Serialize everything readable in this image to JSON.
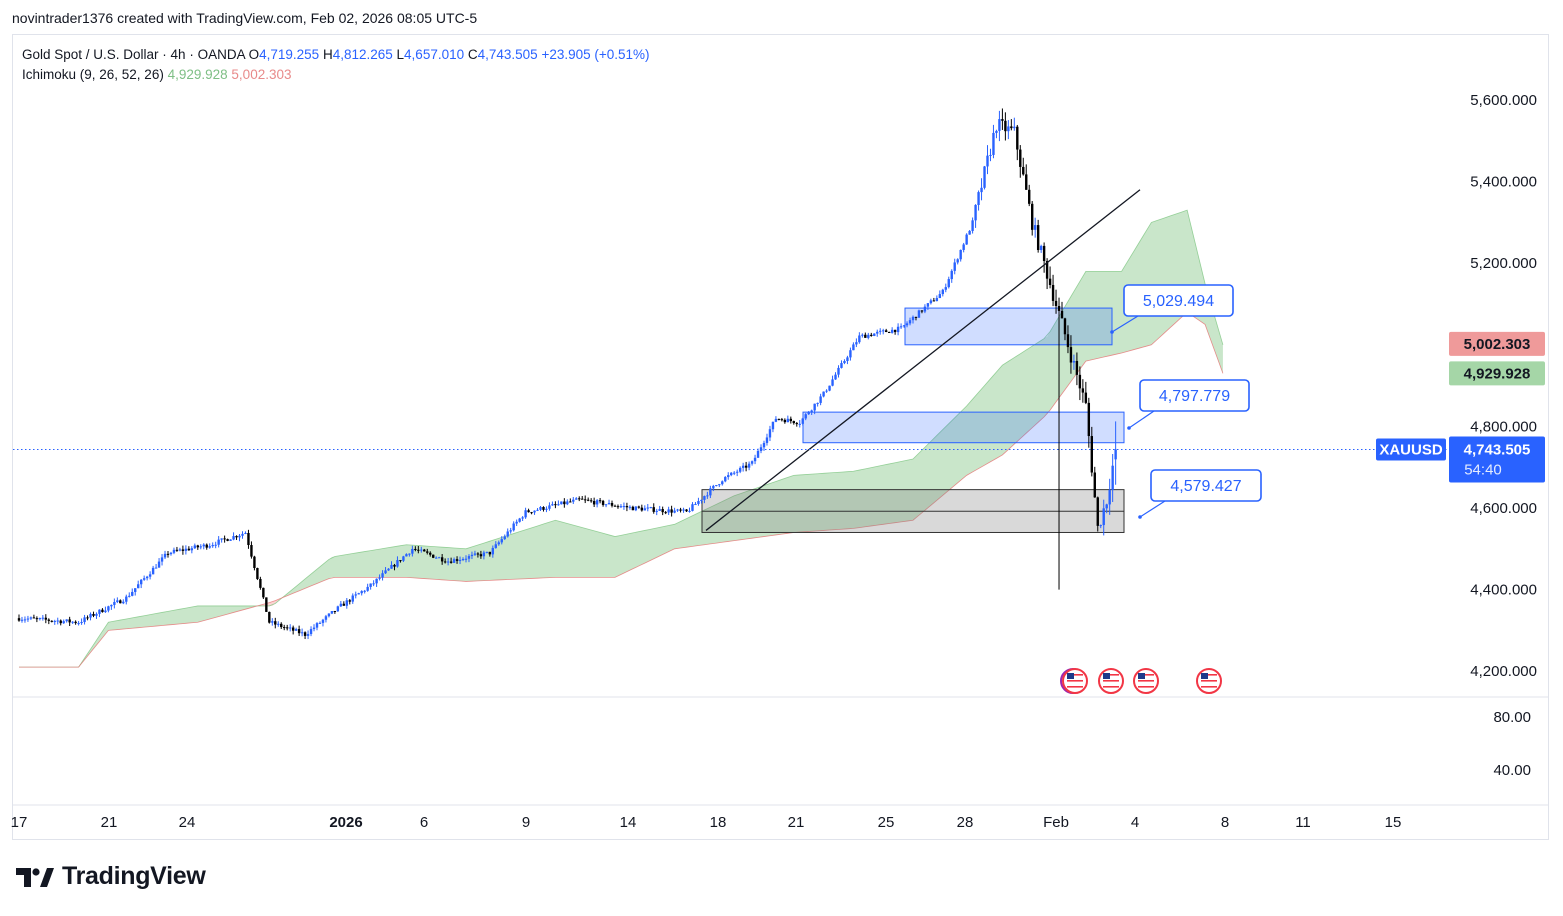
{
  "header": {
    "credit": "novintrader1376 created with TradingView.com, Feb 02, 2026 08:05 UTC-5"
  },
  "legend": {
    "symbol": "Gold Spot / U.S. Dollar · 4h · OANDA",
    "o_label": "O",
    "o_value": "4,719.255",
    "h_label": "H",
    "h_value": "4,812.265",
    "l_label": "L",
    "l_value": "4,657.010",
    "c_label": "C",
    "c_value": "4,743.505",
    "change": "+23.905 (+0.51%)",
    "ichimoku_label": "Ichimoku (9, 26, 52, 26)",
    "ichimoku_a": "4,929.928",
    "ichimoku_b": "5,002.303"
  },
  "colors": {
    "bull": "#2962ff",
    "bear": "#000000",
    "cloud_green": "#a5d6a7",
    "cloud_red": "#f7b0b0",
    "zone_blue": "#2962ff",
    "zone_gray": "#808080",
    "badge_red": "#ef9a9a",
    "badge_green": "#a5d6a7",
    "badge_price": "#2962ff"
  },
  "chart_data": {
    "type": "candlestick",
    "title": "Gold Spot / U.S. Dollar · 4h · OANDA",
    "ylim": [
      4130,
      5720
    ],
    "y_ticks": [
      5600,
      5400,
      5200,
      4800,
      4600,
      4400,
      4200
    ],
    "y_tick_labels": [
      "5,600.000",
      "5,400.000",
      "5,200.000",
      "4,800.000",
      "4,600.000",
      "4,400.000",
      "4,200.000"
    ],
    "x_tick_labels": [
      "17",
      "21",
      "24",
      "2026",
      "6",
      "9",
      "14",
      "18",
      "21",
      "25",
      "28",
      "Feb",
      "4",
      "8",
      "11",
      "15"
    ],
    "price_anchors": [
      [
        0,
        4330
      ],
      [
        20,
        4320
      ],
      [
        36,
        4380
      ],
      [
        50,
        4490
      ],
      [
        64,
        4510
      ],
      [
        76,
        4540
      ],
      [
        84,
        4320
      ],
      [
        96,
        4290
      ],
      [
        108,
        4360
      ],
      [
        118,
        4410
      ],
      [
        132,
        4500
      ],
      [
        144,
        4470
      ],
      [
        158,
        4490
      ],
      [
        170,
        4590
      ],
      [
        188,
        4620
      ],
      [
        206,
        4600
      ],
      [
        224,
        4590
      ],
      [
        236,
        4670
      ],
      [
        246,
        4710
      ],
      [
        254,
        4820
      ],
      [
        262,
        4810
      ],
      [
        270,
        4880
      ],
      [
        282,
        5020
      ],
      [
        296,
        5040
      ],
      [
        310,
        5130
      ],
      [
        320,
        5300
      ],
      [
        328,
        5540
      ],
      [
        334,
        5520
      ],
      [
        340,
        5300
      ],
      [
        346,
        5150
      ],
      [
        352,
        5000
      ],
      [
        358,
        4850
      ],
      [
        362,
        4550
      ],
      [
        365,
        4620
      ],
      [
        368,
        4743
      ]
    ],
    "ichimoku_a": [
      [
        0,
        4210
      ],
      [
        20,
        4210
      ],
      [
        30,
        4320
      ],
      [
        60,
        4360
      ],
      [
        85,
        4360
      ],
      [
        105,
        4480
      ],
      [
        130,
        4510
      ],
      [
        150,
        4500
      ],
      [
        180,
        4570
      ],
      [
        200,
        4530
      ],
      [
        220,
        4560
      ],
      [
        240,
        4630
      ],
      [
        260,
        4680
      ],
      [
        280,
        4690
      ],
      [
        300,
        4720
      ],
      [
        318,
        4850
      ],
      [
        330,
        4950
      ],
      [
        345,
        5020
      ],
      [
        358,
        5180
      ],
      [
        370,
        5180
      ],
      [
        380,
        5300
      ],
      [
        392,
        5330
      ],
      [
        398,
        5150
      ],
      [
        404,
        5000
      ]
    ],
    "ichimoku_b": [
      [
        0,
        4210
      ],
      [
        20,
        4210
      ],
      [
        30,
        4300
      ],
      [
        60,
        4320
      ],
      [
        85,
        4370
      ],
      [
        105,
        4430
      ],
      [
        130,
        4430
      ],
      [
        150,
        4420
      ],
      [
        180,
        4430
      ],
      [
        200,
        4430
      ],
      [
        220,
        4500
      ],
      [
        240,
        4520
      ],
      [
        260,
        4540
      ],
      [
        280,
        4550
      ],
      [
        300,
        4570
      ],
      [
        318,
        4680
      ],
      [
        330,
        4730
      ],
      [
        345,
        4830
      ],
      [
        358,
        4960
      ],
      [
        370,
        4980
      ],
      [
        380,
        5000
      ],
      [
        392,
        5080
      ],
      [
        398,
        5050
      ],
      [
        404,
        4930
      ]
    ],
    "ichimoku_last_a": 4929.928,
    "ichimoku_last_b": 5002.303,
    "zones": [
      {
        "kind": "blue",
        "label": "5,029.494",
        "low": 5000,
        "high": 5090
      },
      {
        "kind": "blue",
        "label": "4,797.779",
        "low": 4760,
        "high": 4835
      },
      {
        "kind": "gray",
        "label": "4,579.427",
        "low": 4540,
        "high": 4645,
        "mid": 4592
      }
    ],
    "trendline": {
      "from": [
        4545
      ],
      "to": [
        5380
      ]
    },
    "last_price": 4743.505,
    "badges": {
      "b_red": "5,002.303",
      "b_green": "4,929.928",
      "symbol": "XAUUSD",
      "price": "4,743.505",
      "countdown": "54:40"
    },
    "oscillator_ticks": [
      "80.00",
      "40.00"
    ],
    "event_count": 4
  },
  "brand": {
    "name": "TradingView"
  }
}
